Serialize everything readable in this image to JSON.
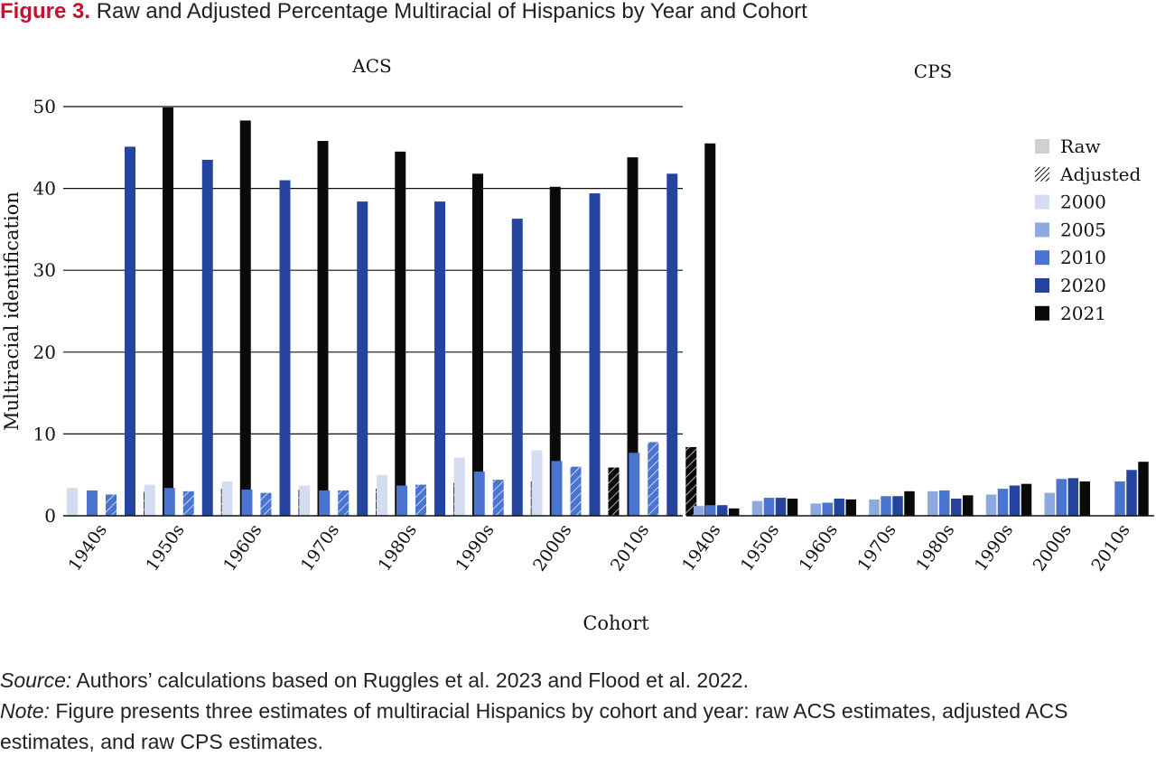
{
  "figure": {
    "label": "Figure 3.",
    "title": "Raw and Adjusted Percentage Multiracial of Hispanics by Year and Cohort"
  },
  "notes": {
    "source_label": "Source:",
    "source_text": " Authors’ calculations based on Ruggles et al. 2023 and Flood et al. 2022.",
    "note_label": "Note:",
    "note_text": " Figure presents three estimates of multiracial Hispanics by cohort and year: raw ACS estimates, adjusted ACS estimates, and raw CPS estimates."
  },
  "colors": {
    "2000": "#d3dcf1",
    "2005": "#8ea9dd",
    "2010": "#4a74d0",
    "2020": "#2544a0",
    "2021": "#0a0a0a",
    "raw_swatch": "#d0d0d0"
  },
  "chart_data": [
    {
      "type": "bar",
      "title": "ACS",
      "xlabel": "Cohort",
      "ylabel": "Multiracial identification",
      "ylim": [
        0,
        50
      ],
      "yticks": [
        0,
        10,
        20,
        30,
        40,
        50
      ],
      "grid": true,
      "categories": [
        "1940s",
        "1950s",
        "1960s",
        "1970s",
        "1980s",
        "1990s",
        "2000s",
        "2010s"
      ],
      "series": [
        {
          "name": "2000",
          "kind": "raw",
          "values": [
            3.4,
            3.8,
            4.2,
            3.7,
            5.0,
            7.1,
            8.0,
            null
          ]
        },
        {
          "name": "2010",
          "kind": "raw",
          "values": [
            3.1,
            3.4,
            3.2,
            3.1,
            3.7,
            5.4,
            6.7,
            7.7
          ]
        },
        {
          "name": "2010",
          "kind": "adjusted",
          "values": [
            2.6,
            3.0,
            2.8,
            3.1,
            3.8,
            4.4,
            6.0,
            9.0
          ]
        },
        {
          "name": "2020",
          "kind": "raw",
          "values": [
            45.1,
            43.5,
            41.0,
            38.4,
            38.4,
            36.3,
            39.4,
            41.8
          ]
        },
        {
          "name": "2021",
          "kind": "adjusted",
          "values": [
            3.0,
            3.3,
            3.2,
            3.3,
            4.0,
            4.2,
            5.9,
            8.4
          ]
        },
        {
          "name": "2021",
          "kind": "raw",
          "values": [
            49.9,
            48.3,
            45.8,
            44.5,
            41.8,
            40.2,
            43.8,
            45.5
          ]
        }
      ]
    },
    {
      "type": "bar",
      "title": "CPS",
      "xlabel": "Cohort",
      "ylim": [
        0,
        50
      ],
      "categories": [
        "1940s",
        "1950s",
        "1960s",
        "1970s",
        "1980s",
        "1990s",
        "2000s",
        "2010s"
      ],
      "series": [
        {
          "name": "2005",
          "values": [
            1.2,
            1.8,
            1.5,
            2.0,
            3.0,
            2.6,
            2.8,
            null
          ]
        },
        {
          "name": "2010",
          "values": [
            1.3,
            2.2,
            1.6,
            2.4,
            3.1,
            3.3,
            4.5,
            4.2
          ]
        },
        {
          "name": "2020",
          "values": [
            1.3,
            2.2,
            2.1,
            2.4,
            2.1,
            3.7,
            4.6,
            5.6
          ]
        },
        {
          "name": "2021",
          "values": [
            0.9,
            2.1,
            2.0,
            3.0,
            2.5,
            3.9,
            4.2,
            6.6
          ]
        }
      ]
    }
  ],
  "legend": {
    "placement": "right",
    "items": [
      {
        "label": "Raw",
        "swatch": "raw"
      },
      {
        "label": "Adjusted",
        "swatch": "adjusted"
      },
      {
        "label": "2000",
        "swatch": "2000"
      },
      {
        "label": "2005",
        "swatch": "2005"
      },
      {
        "label": "2010",
        "swatch": "2010"
      },
      {
        "label": "2020",
        "swatch": "2020"
      },
      {
        "label": "2021",
        "swatch": "2021"
      }
    ]
  }
}
